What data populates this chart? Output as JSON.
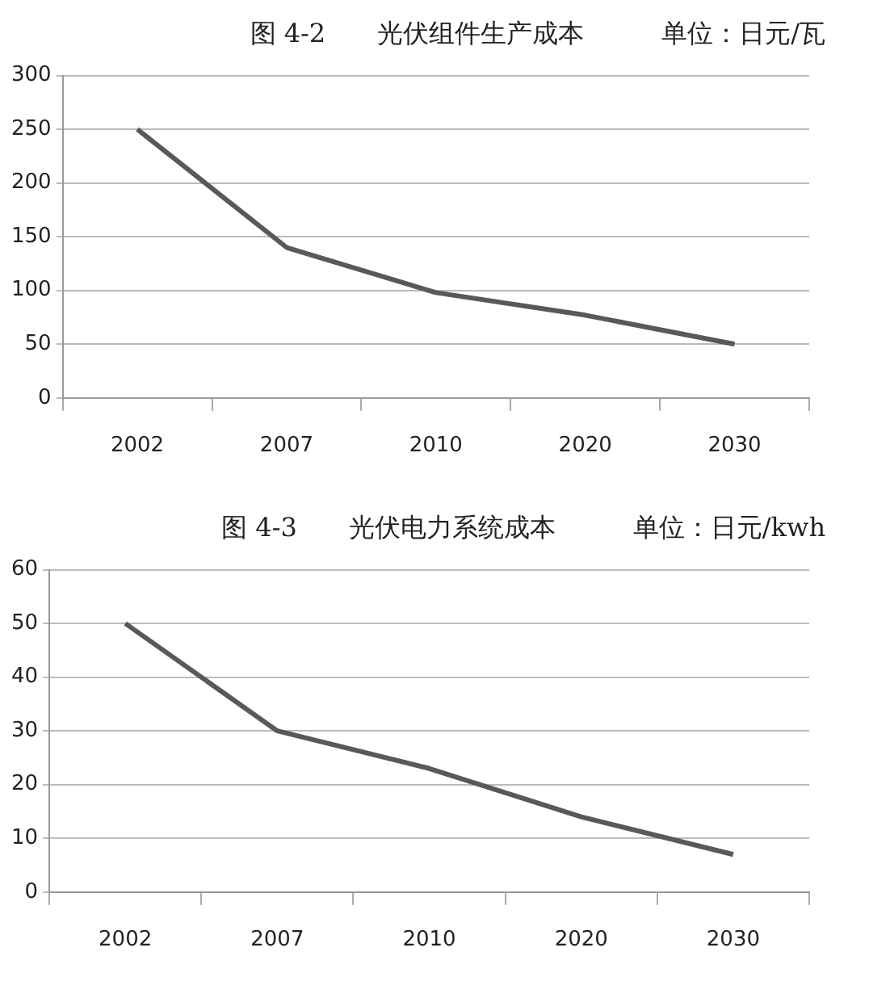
{
  "chart_data": [
    {
      "type": "line",
      "title": "图 4-2　　光伏组件生产成本　　　单位：日元/瓦",
      "categories": [
        "2002",
        "2007",
        "2010",
        "2020",
        "2030"
      ],
      "series": [
        {
          "color": "#595959",
          "values": [
            250,
            140,
            98,
            77,
            50
          ]
        }
      ],
      "ylim": [
        0,
        300
      ],
      "yticks": [
        0,
        50,
        100,
        150,
        200,
        250,
        300
      ],
      "grid": "y",
      "legend": false,
      "marker": "none"
    },
    {
      "type": "line",
      "title": "图 4-3　　光伏电力系统成本　　　单位：日元/kwh",
      "categories": [
        "2002",
        "2007",
        "2010",
        "2020",
        "2030"
      ],
      "series": [
        {
          "color": "#595959",
          "values": [
            50,
            30,
            23,
            14,
            7
          ]
        }
      ],
      "ylim": [
        0,
        60
      ],
      "yticks": [
        0,
        10,
        20,
        30,
        40,
        50,
        60
      ],
      "grid": "y",
      "legend": false,
      "marker": "none"
    }
  ]
}
